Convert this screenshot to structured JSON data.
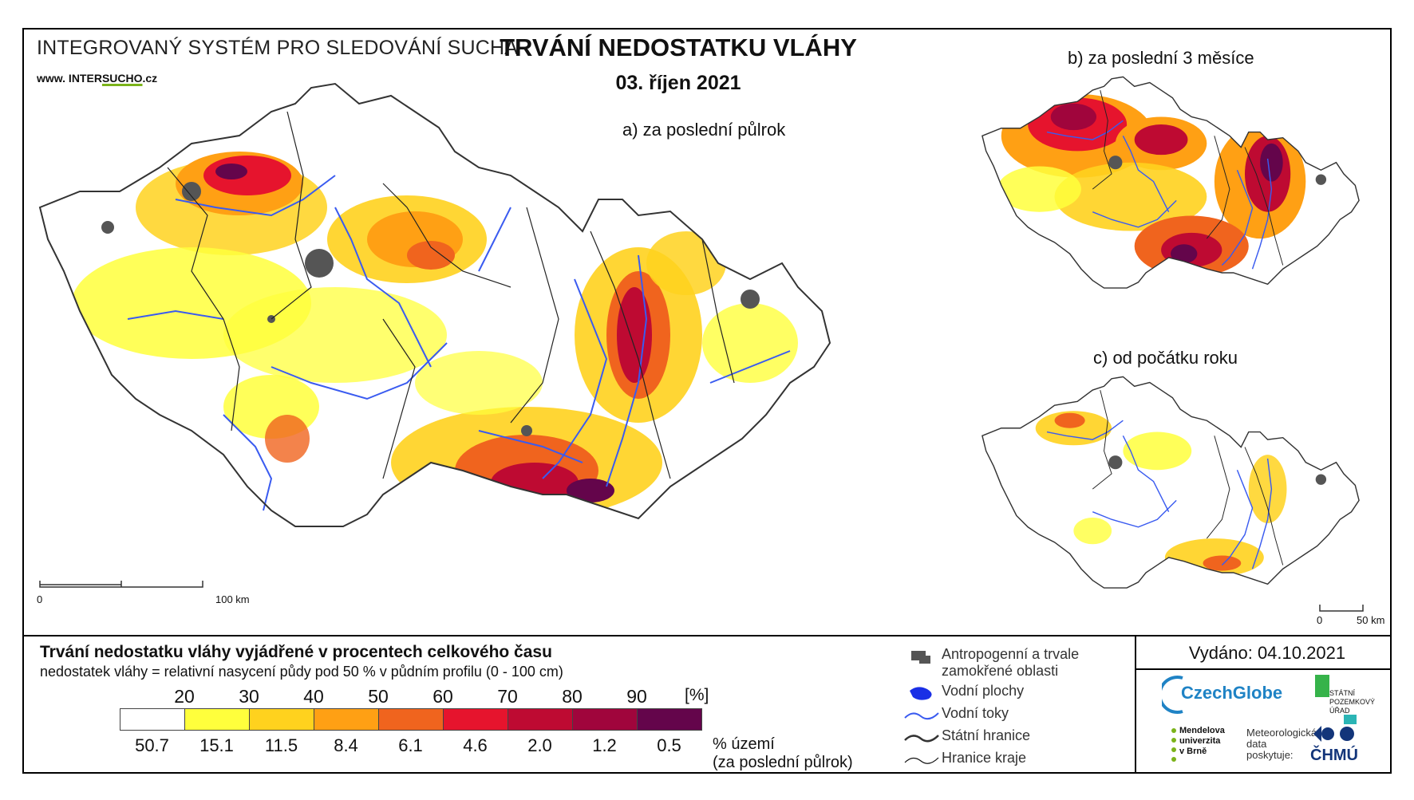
{
  "header": {
    "system_title": "INTEGROVANÝ SYSTÉM PRO SLEDOVÁNÍ SUCHA",
    "url_prefix": "www. INTER",
    "url_mid": "SUCHO",
    "url_suffix": ".cz",
    "title": "TRVÁNÍ NEDOSTATKU VLÁHY",
    "date": "03. říjen 2021"
  },
  "maps": {
    "a_label": "a) za poslední půlrok",
    "b_label": "b) za poslední 3 měsíce",
    "c_label": "c) od počátku roku",
    "scale_main_zero": "0",
    "scale_main_end": "100 km",
    "scale_small_zero": "0",
    "scale_small_end": "50 km"
  },
  "legend": {
    "title": "Trvání nedostatku vláhy vyjádřené v procentech celkového času",
    "subtitle": "nedostatek vláhy = relativní nasycení půdy pod 50 % v půdním profilu (0 - 100 cm)",
    "unit": "[%]",
    "thresholds": [
      "20",
      "30",
      "40",
      "50",
      "60",
      "70",
      "80",
      "90"
    ],
    "colors": [
      "#ffffff",
      "#ffff3c",
      "#ffd21e",
      "#ffa014",
      "#f0641e",
      "#e6142d",
      "#be0a32",
      "#a0053c",
      "#64054b"
    ],
    "area_values": [
      "50.7",
      "15.1",
      "11.5",
      "8.4",
      "6.1",
      "4.6",
      "2.0",
      "1.2",
      "0.5"
    ],
    "area_label_1": "% území",
    "area_label_2": "(za poslední půlrok)"
  },
  "key": {
    "anthropogenic": "Antropogenní a trvale zamokřené oblasti",
    "water_bodies": "Vodní plochy",
    "rivers": "Vodní toky",
    "state_border": "Státní hranice",
    "region_border": "Hranice kraje",
    "colors": {
      "anthropogenic": "#555555",
      "water": "#1a2fe6",
      "river": "#3a5bf0"
    }
  },
  "footer": {
    "issued": "Vydáno: 04.10.2021",
    "czechglobe": "CzechGlobe",
    "spu_1": "STÁTNÍ",
    "spu_2": "POZEMKOVÝ",
    "spu_3": "ÚŘAD",
    "mu_1": "Mendelova",
    "mu_2": "univerzita",
    "mu_3": "v Brně",
    "met_1": "Meteorologická",
    "met_2": "data",
    "met_3": "poskytuje:",
    "chmu": "ČHMÚ"
  }
}
